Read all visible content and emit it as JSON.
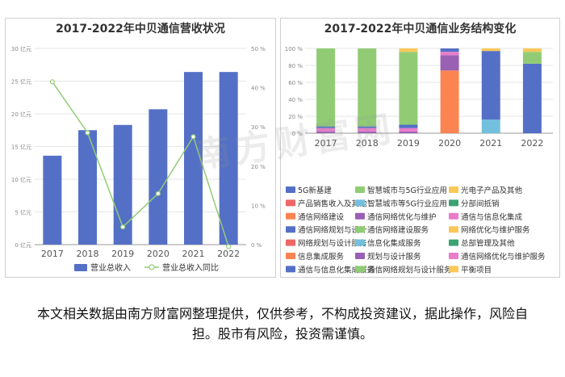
{
  "disclaimer": "本文相关数据由南方财富网整理提供，仅供参考，不构成投资建议，据此操作，风险自担。股市有风险，投资需谨慎。",
  "watermark": "南方财富网",
  "watermark_url": "southmoney.com",
  "chart_data": [
    {
      "type": "bar",
      "title": "2017-2022年中贝通信营收状况",
      "categories": [
        "2017",
        "2018",
        "2019",
        "2020",
        "2021",
        "2022"
      ],
      "series": [
        {
          "name": "营业总收入",
          "type": "bar",
          "axis": "left",
          "color": "#5470c6",
          "values": [
            13.6,
            17.5,
            18.3,
            20.7,
            26.4,
            26.4
          ]
        },
        {
          "name": "营业总收入同比",
          "type": "line",
          "axis": "right",
          "color": "#91cc75",
          "values": [
            41.5,
            28.5,
            4.5,
            13.0,
            27.5,
            -0.5
          ]
        }
      ],
      "left_axis": {
        "ticks": [
          "0 亿元",
          "5 亿元",
          "10 亿元",
          "15 亿元",
          "20 亿元",
          "25 亿元",
          "30 亿元"
        ],
        "ylim": [
          0,
          30
        ]
      },
      "right_axis": {
        "ticks": [
          "0 %",
          "10 %",
          "20 %",
          "30 %",
          "40 %",
          "50 %"
        ],
        "ylim": [
          0,
          50
        ]
      },
      "legend": "bottom"
    },
    {
      "type": "bar",
      "stacked": true,
      "title": "2017-2022年中贝通信业务结构变化",
      "categories": [
        "2017",
        "2018",
        "2019",
        "2020",
        "2021",
        "2022"
      ],
      "yticks": [
        "0 %",
        "20 %",
        "40 %",
        "60 %",
        "80 %",
        "100 %"
      ],
      "ylim": [
        0,
        100
      ],
      "series": [
        {
          "name": "5G新基建",
          "color": "#5470c6",
          "values": [
            0,
            0,
            0,
            0,
            0,
            0
          ]
        },
        {
          "name": "智慧城市与5G行业应用",
          "color": "#91cc75",
          "values": [
            0,
            0,
            0,
            0,
            0,
            0
          ]
        },
        {
          "name": "光电子产品及其他",
          "color": "#fac858",
          "values": [
            0,
            0,
            0,
            0,
            0,
            0
          ]
        },
        {
          "name": "产品销售收入及其他",
          "color": "#ee6666",
          "values": [
            0,
            0,
            0,
            0,
            0,
            0
          ]
        },
        {
          "name": "智慧城市等5G行业应用",
          "color": "#73c0de",
          "values": [
            0,
            0,
            0,
            0,
            0,
            0
          ]
        },
        {
          "name": "分部间抵销",
          "color": "#3ba272",
          "values": [
            0,
            0,
            0,
            0,
            0,
            0
          ]
        },
        {
          "name": "通信网络建设",
          "color": "#fc8452",
          "values": [
            0,
            0,
            0,
            74,
            0,
            0
          ]
        },
        {
          "name": "通信网络优化与维护",
          "color": "#9a60b4",
          "values": [
            0,
            0,
            0,
            18,
            0,
            0
          ]
        },
        {
          "name": "通信与信息化集成",
          "color": "#ea7ccc",
          "values": [
            0,
            0,
            0,
            4,
            0,
            0
          ]
        },
        {
          "name": "通信网络规划与设计",
          "color": "#5470c6",
          "values": [
            0,
            0,
            0,
            4,
            0,
            0
          ]
        },
        {
          "name": "通信网络建设服务",
          "color": "#91cc75",
          "values": [
            0,
            0,
            0,
            0,
            0,
            0
          ]
        },
        {
          "name": "网络优化与维护服务",
          "color": "#fac858",
          "values": [
            0,
            0,
            0,
            0,
            0,
            0
          ]
        },
        {
          "name": "网络规划与设计服务",
          "color": "#ee6666",
          "values": [
            0,
            0,
            0,
            0,
            0,
            0
          ]
        },
        {
          "name": "信息化集成服务",
          "color": "#73c0de",
          "values": [
            0,
            0,
            0,
            0,
            16,
            0
          ]
        },
        {
          "name": "总部管理及其他",
          "color": "#3ba272",
          "values": [
            0,
            0,
            0,
            0,
            0,
            0
          ]
        },
        {
          "name": "信息集成服务",
          "color": "#fc8452",
          "values": [
            0,
            0,
            0,
            0,
            0,
            0
          ]
        },
        {
          "name": "规划与设计服务",
          "color": "#9a60b4",
          "values": [
            2,
            2,
            2,
            0,
            0,
            0
          ]
        },
        {
          "name": "通信网络优化与维护服务",
          "color": "#ea7ccc",
          "values": [
            4,
            4,
            4,
            0,
            0,
            0
          ]
        },
        {
          "name": "通信与信息化集成服务",
          "color": "#5470c6",
          "values": [
            2,
            2,
            4,
            0,
            81,
            82
          ]
        },
        {
          "name": "通信网络规划与设计服务",
          "color": "#91cc75",
          "values": [
            92,
            92,
            86,
            0,
            0,
            14
          ]
        },
        {
          "name": "平衡项目",
          "color": "#fac858",
          "values": [
            0,
            0,
            4,
            0,
            3,
            4
          ]
        }
      ],
      "legend": "bottom"
    }
  ]
}
